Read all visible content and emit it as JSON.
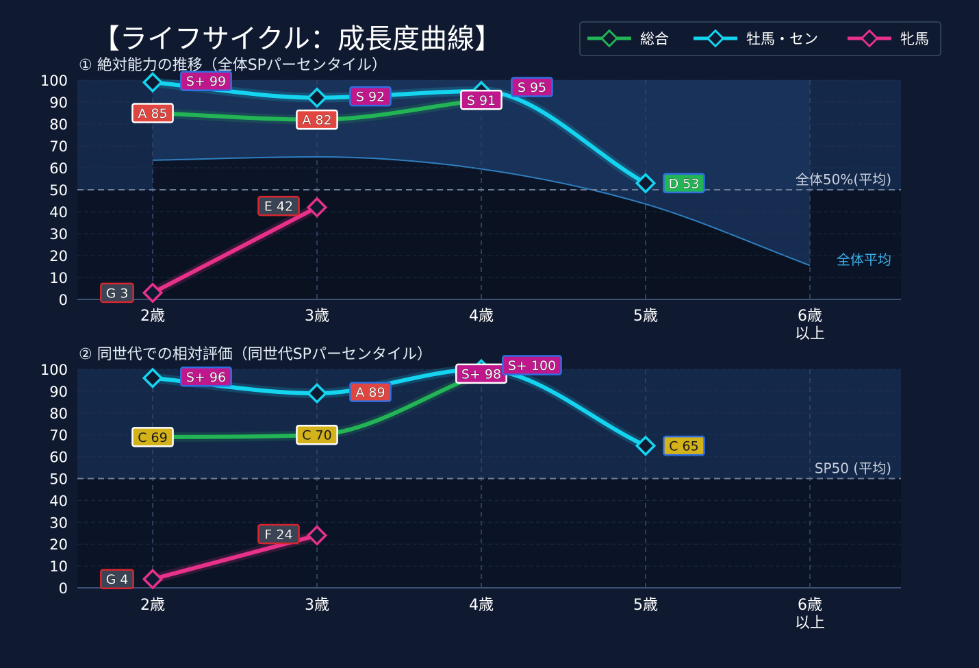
{
  "title": "【ライフサイクル：成長度曲線】",
  "legend": [
    {
      "name": "総合",
      "color": "#22b455"
    },
    {
      "name": "牡馬・セン",
      "color": "#14d4f0"
    },
    {
      "name": "牝馬",
      "color": "#e8318a"
    }
  ],
  "colors": {
    "background": "#0f1a30",
    "plot_upper": "#14284a",
    "plot_lower": "#0b1426",
    "avg_line": "#2f7fc0",
    "avg_label": "#3ab0ea",
    "ref_label": "#c8d0dc"
  },
  "chart_data": [
    {
      "type": "line",
      "title": "① 絶対能力の推移（全体SPパーセンタイル）",
      "categories": [
        "2歳",
        "3歳",
        "4歳",
        "5歳",
        "6歳\n以上"
      ],
      "ylim": [
        0,
        100
      ],
      "yticks": [
        "0",
        "10",
        "20",
        "30",
        "40",
        "50",
        "60",
        "70",
        "80",
        "90",
        "100"
      ],
      "reference": {
        "value": 50,
        "label": "全体50%(平均)"
      },
      "average": {
        "label": "全体平均",
        "values": [
          63.5,
          65,
          59.5,
          43.5,
          15.5
        ]
      },
      "series": [
        {
          "name": "総合",
          "values": [
            85,
            82,
            91,
            null,
            null
          ],
          "labels": [
            "A 85",
            "A 82",
            "S 91",
            null,
            null
          ]
        },
        {
          "name": "牡馬・セン",
          "values": [
            99,
            92,
            95,
            53,
            null
          ],
          "labels": [
            "S+ 99",
            "S 92",
            "S 95",
            "D 53",
            null
          ]
        },
        {
          "name": "牝馬",
          "values": [
            3,
            42,
            null,
            null,
            null
          ],
          "labels": [
            "G 3",
            "E 42",
            null,
            null,
            null
          ]
        }
      ]
    },
    {
      "type": "line",
      "title": "② 同世代での相対評価（同世代SPパーセンタイル）",
      "categories": [
        "2歳",
        "3歳",
        "4歳",
        "5歳",
        "6歳\n以上"
      ],
      "ylim": [
        0,
        100
      ],
      "yticks": [
        "0",
        "10",
        "20",
        "30",
        "40",
        "50",
        "60",
        "70",
        "80",
        "90",
        "100"
      ],
      "reference": {
        "value": 50,
        "label": "SP50 (平均)"
      },
      "series": [
        {
          "name": "総合",
          "values": [
            69,
            70,
            98,
            null,
            null
          ],
          "labels": [
            "C 69",
            "C 70",
            "S+ 98",
            null,
            null
          ]
        },
        {
          "name": "牡馬・セン",
          "values": [
            96,
            89,
            100,
            65,
            null
          ],
          "labels": [
            "S+ 96",
            "A 89",
            "S+ 100",
            "C 65",
            null
          ]
        },
        {
          "name": "牝馬",
          "values": [
            4,
            24,
            null,
            null,
            null
          ],
          "labels": [
            "G 4",
            "F 24",
            null,
            null,
            null
          ]
        }
      ]
    }
  ]
}
